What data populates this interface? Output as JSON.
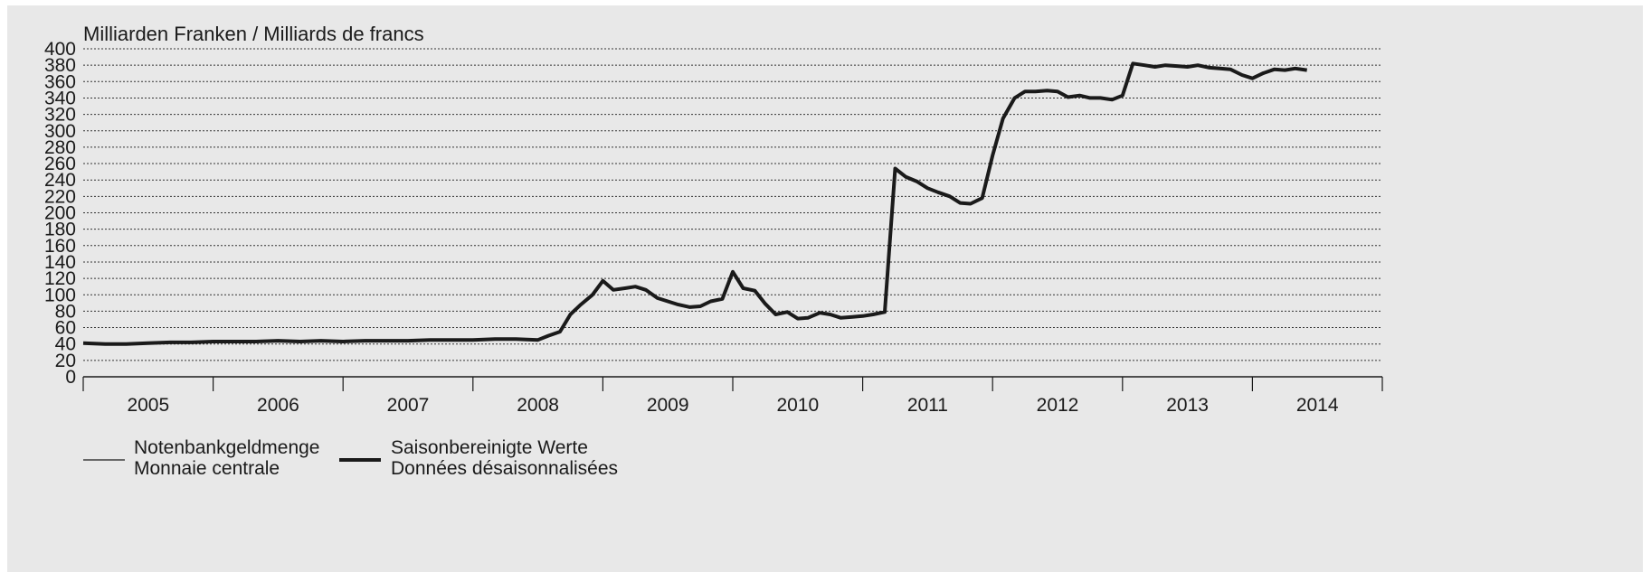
{
  "chart_data": {
    "type": "line",
    "ylabel": "Milliarden Franken / Milliards de francs",
    "ylim": [
      0,
      400
    ],
    "yticks": [
      0,
      20,
      40,
      60,
      80,
      100,
      120,
      140,
      160,
      180,
      200,
      220,
      240,
      260,
      280,
      300,
      320,
      340,
      360,
      380,
      400
    ],
    "xlim": [
      2005.0,
      2015.0
    ],
    "xtick_labels": [
      "2005",
      "2006",
      "2007",
      "2008",
      "2009",
      "2010",
      "2011",
      "2012",
      "2013",
      "2014"
    ],
    "grid": "horizontal dotted",
    "legend_position": "bottom-left",
    "series": [
      {
        "name": "Notenbankgeldmenge\nMonnaie centrale",
        "legend_lines": [
          "Notenbankgeldmenge",
          "Monnaie centrale"
        ],
        "style": "thin",
        "x": [],
        "y": []
      },
      {
        "name": "Saisonbereinigte Werte\nDonnées désaisonnalisées",
        "legend_lines": [
          "Saisonbereinigte Werte",
          "Données désaisonnalisées"
        ],
        "style": "thick",
        "x": [
          2005.0,
          2005.17,
          2005.33,
          2005.5,
          2005.67,
          2005.83,
          2006.0,
          2006.17,
          2006.33,
          2006.5,
          2006.67,
          2006.83,
          2007.0,
          2007.17,
          2007.33,
          2007.5,
          2007.67,
          2007.83,
          2008.0,
          2008.17,
          2008.33,
          2008.5,
          2008.58,
          2008.67,
          2008.75,
          2008.83,
          2008.92,
          2009.0,
          2009.08,
          2009.17,
          2009.25,
          2009.33,
          2009.42,
          2009.5,
          2009.58,
          2009.67,
          2009.75,
          2009.83,
          2009.92,
          2010.0,
          2010.08,
          2010.17,
          2010.25,
          2010.33,
          2010.42,
          2010.5,
          2010.58,
          2010.67,
          2010.75,
          2010.83,
          2010.92,
          2011.0,
          2011.08,
          2011.17,
          2011.25,
          2011.33,
          2011.42,
          2011.5,
          2011.58,
          2011.67,
          2011.75,
          2011.83,
          2011.92,
          2012.0,
          2012.08,
          2012.17,
          2012.25,
          2012.33,
          2012.42,
          2012.5,
          2012.58,
          2012.67,
          2012.75,
          2012.83,
          2012.92,
          2013.0,
          2013.08,
          2013.17,
          2013.25,
          2013.33,
          2013.42,
          2013.5,
          2013.58,
          2013.67,
          2013.75,
          2013.83,
          2013.92,
          2014.0,
          2014.08,
          2014.17,
          2014.25,
          2014.33,
          2014.42
        ],
        "y": [
          41,
          40,
          40,
          41,
          42,
          42,
          43,
          43,
          43,
          44,
          43,
          44,
          43,
          44,
          44,
          44,
          45,
          45,
          45,
          46,
          46,
          45,
          50,
          55,
          76,
          88,
          100,
          117,
          106,
          108,
          110,
          106,
          96,
          92,
          88,
          85,
          86,
          92,
          95,
          128,
          108,
          105,
          89,
          76,
          79,
          71,
          72,
          78,
          76,
          72,
          73,
          74,
          76,
          79,
          254,
          244,
          238,
          230,
          225,
          220,
          212,
          211,
          218,
          270,
          315,
          340,
          348,
          348,
          349,
          348,
          341,
          343,
          340,
          340,
          338,
          343,
          382,
          380,
          378,
          380,
          379,
          378,
          380,
          377,
          376,
          375,
          368,
          364,
          370,
          375,
          374,
          376,
          374
        ]
      }
    ]
  }
}
